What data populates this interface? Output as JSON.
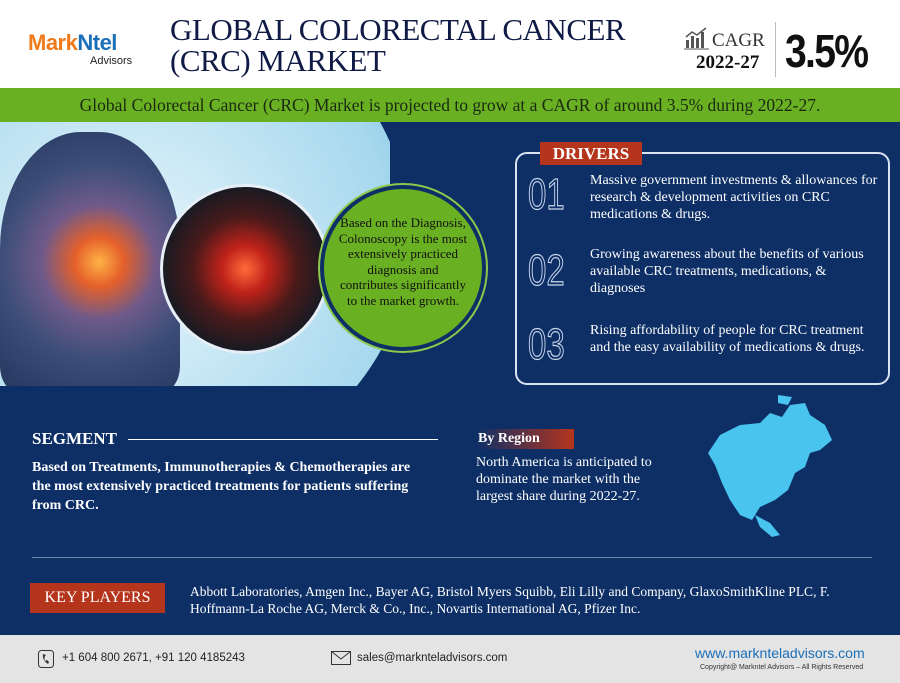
{
  "header": {
    "logo_main_a": "Mark",
    "logo_main_b": "Ntel",
    "logo_sub": "Advisors",
    "title_line1": "GLOBAL COLORECTAL CANCER",
    "title_line2": "(CRC) MARKET",
    "cagr_label": "CAGR",
    "cagr_years": "2022-27",
    "cagr_value": "3.5%",
    "cagr_icon": "bar-chart-growth-icon"
  },
  "banner": "Global Colorectal Cancer (CRC) Market is projected to grow at a CAGR of around 3.5% during 2022-27.",
  "hero": {
    "callout": "Based on the Diagnosis, Colonoscopy is the most extensively practiced diagnosis and contributes significantly to the market growth."
  },
  "drivers": {
    "title": "DRIVERS",
    "items": [
      {
        "num": "01",
        "text": "Massive government investments & allowances for research & development activities on CRC medications & drugs."
      },
      {
        "num": "02",
        "text": "Growing awareness about the benefits of various available CRC treatments, medications, & diagnoses"
      },
      {
        "num": "03",
        "text": "Rising affordability of people for CRC treatment and the easy availability of medications & drugs."
      }
    ]
  },
  "segment": {
    "title": "SEGMENT",
    "text": "Based on Treatments, Immunotherapies & Chemotherapies are the most extensively practiced treatments for patients suffering from CRC."
  },
  "region": {
    "title": "By Region",
    "text": "North America is anticipated to dominate the market with the largest share during 2022-27."
  },
  "key_players": {
    "title": "KEY PLAYERS",
    "text": "Abbott Laboratories, Amgen Inc., Bayer AG, Bristol Myers Squibb, Eli Lilly and Company, GlaxoSmithKline PLC, F. Hoffmann-La Roche AG, Merck & Co., Inc., Novartis International AG, Pfizer Inc."
  },
  "footer": {
    "phone": "+1 604 800 2671, +91 120 4185243",
    "email": "sales@marknteladvisors.com",
    "website": "www.marknteladvisors.com",
    "copyright": "Copyright@ Markntel Advisors – All Rights Reserved"
  },
  "colors": {
    "navy": "#0d2f66",
    "green": "#6ab023",
    "red": "#b5341c",
    "logo_orange": "#f07a1a",
    "logo_blue": "#1b6fb8"
  }
}
